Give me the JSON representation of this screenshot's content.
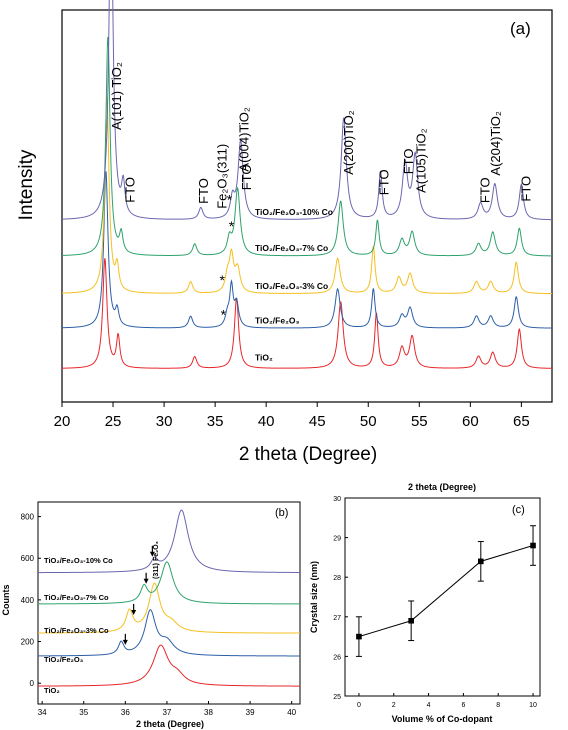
{
  "figure": {
    "panels": [
      {
        "id": "a",
        "panel_label": "(a)",
        "xlabel": "2 theta (Degree)",
        "ylabel": "Intensity",
        "xticks": [
          "20",
          "25",
          "30",
          "35",
          "40",
          "45",
          "50",
          "55",
          "60",
          "65"
        ],
        "series_labels": [
          {
            "text": "TiO₂/Fe₂O₃-10% Co"
          },
          {
            "text": "TiO₂/Fe₂O₃-7% Co"
          },
          {
            "text": "TiO₂/Fe₂O₃-3% Co"
          },
          {
            "text": "TiO₂/Fe₂O₃"
          },
          {
            "text": "TiO₂"
          }
        ],
        "peak_labels": [
          {
            "text": "A(101) TiO₂",
            "x": 25.3
          },
          {
            "text": "FTO",
            "x": 26.6
          },
          {
            "text": "FTO",
            "x": 33.8
          },
          {
            "text": "Fe₂O₃(311)",
            "x": 35.6
          },
          {
            "text": "A(004)TiO₂",
            "x": 37.8
          },
          {
            "text": "FTO",
            "x": 38.0
          },
          {
            "text": "A(200)TiO₂",
            "x": 48.0
          },
          {
            "text": "FTO",
            "x": 51.5
          },
          {
            "text": "FTO",
            "x": 53.9
          },
          {
            "text": "A(105)TiO₂",
            "x": 55.1
          },
          {
            "text": "FTO",
            "x": 61.4
          },
          {
            "text": "A(204)TiO₂",
            "x": 62.4
          },
          {
            "text": "FTO",
            "x": 65.4
          }
        ],
        "star_marker": "*"
      },
      {
        "id": "b",
        "panel_label": "(b)",
        "xlabel": "2 theta (Degree)",
        "ylabel": "Counts",
        "xticks": [
          "34",
          "35",
          "36",
          "37",
          "38",
          "39",
          "40"
        ],
        "yticks": [
          "0",
          "200",
          "400",
          "600",
          "800"
        ],
        "annotation": "(311) Fe₂O₃",
        "series_labels": [
          {
            "text": "TiO₂/Fe₂O₃-10% Co"
          },
          {
            "text": "TiO₂/Fe₂O₃-7% Co"
          },
          {
            "text": "TiO₂/Fe₂O₃-3% Co"
          },
          {
            "text": "TiO₂/Fe₂O₃"
          },
          {
            "text": "TiO₂"
          }
        ]
      },
      {
        "id": "c",
        "panel_label": "(c)",
        "title": "2 theta (Degree)",
        "xlabel": "Volume % of Co-dopant",
        "ylabel": "Crystal size (nm)",
        "xticks": [
          "0",
          "2",
          "4",
          "6",
          "8",
          "10"
        ],
        "yticks": [
          "25",
          "26",
          "27",
          "28",
          "29",
          "30"
        ]
      }
    ]
  },
  "chart_data": [
    {
      "type": "line",
      "panel": "(a)",
      "xlabel": "2 theta (Degree)",
      "ylabel": "Intensity",
      "xlim": [
        20,
        68
      ],
      "ylim": [
        0,
        100
      ],
      "series": [
        {
          "label": "TiO₂",
          "color": "#e8262a",
          "baseline": 8.5,
          "peaks": [
            [
              24.2,
              28,
              0.25
            ],
            [
              25.5,
              8,
              0.2
            ],
            [
              33.0,
              3,
              0.25
            ],
            [
              37.1,
              18,
              0.25
            ],
            [
              47.3,
              17,
              0.3
            ],
            [
              50.8,
              14,
              0.2
            ],
            [
              53.3,
              5,
              0.3
            ],
            [
              54.3,
              8,
              0.3
            ],
            [
              60.8,
              3,
              0.3
            ],
            [
              62.2,
              4,
              0.3
            ],
            [
              64.8,
              10,
              0.25
            ]
          ]
        },
        {
          "label": "TiO₂/Fe₂O₃",
          "color": "#2c5fa8",
          "baseline": 18.8,
          "peaks": [
            [
              24.3,
              40,
              0.25
            ],
            [
              25.4,
              4,
              0.2
            ],
            [
              32.6,
              3,
              0.25
            ],
            [
              36.2,
              3,
              0.25
            ],
            [
              36.6,
              10,
              0.2
            ],
            [
              37.1,
              6,
              0.25
            ],
            [
              47.0,
              10,
              0.3
            ],
            [
              50.5,
              10,
              0.2
            ],
            [
              53.3,
              3,
              0.3
            ],
            [
              54.1,
              5,
              0.3
            ],
            [
              60.6,
              3,
              0.3
            ],
            [
              62.0,
              3,
              0.3
            ],
            [
              64.5,
              8,
              0.25
            ]
          ]
        },
        {
          "label": "TiO₂/Fe₂O₃-3% Co",
          "color": "#f4c020",
          "baseline": 27.6,
          "peaks": [
            [
              24.4,
              50,
              0.25
            ],
            [
              25.4,
              6,
              0.2
            ],
            [
              32.6,
              3,
              0.25
            ],
            [
              36.2,
              4,
              0.25
            ],
            [
              36.6,
              9,
              0.25
            ],
            [
              37.2,
              6,
              0.3
            ],
            [
              47.0,
              9,
              0.3
            ],
            [
              50.5,
              12,
              0.2
            ],
            [
              53.0,
              4,
              0.3
            ],
            [
              54.1,
              5,
              0.3
            ],
            [
              60.6,
              3,
              0.3
            ],
            [
              62.0,
              3,
              0.3
            ],
            [
              64.5,
              8,
              0.25
            ]
          ]
        },
        {
          "label": "TiO₂/Fe₂O₃-7% Co",
          "color": "#2ea26b",
          "baseline": 37.2,
          "peaks": [
            [
              24.5,
              56,
              0.25
            ],
            [
              25.8,
              5,
              0.2
            ],
            [
              33.0,
              3,
              0.25
            ],
            [
              36.4,
              4,
              0.25
            ],
            [
              37.2,
              17,
              0.3
            ],
            [
              47.3,
              14,
              0.3
            ],
            [
              50.9,
              9,
              0.2
            ],
            [
              53.3,
              4,
              0.3
            ],
            [
              54.3,
              6,
              0.3
            ],
            [
              60.8,
              3,
              0.3
            ],
            [
              62.2,
              6,
              0.3
            ],
            [
              64.8,
              7,
              0.25
            ]
          ]
        },
        {
          "label": "TiO₂/Fe₂O₃-10% Co",
          "color": "#6a66b0",
          "baseline": 46.4,
          "peaks": [
            [
              24.8,
              82,
              0.25
            ],
            [
              26.0,
              8,
              0.2
            ],
            [
              33.6,
              3,
              0.25
            ],
            [
              36.7,
              5,
              0.25
            ],
            [
              37.5,
              20,
              0.3
            ],
            [
              47.6,
              26,
              0.3
            ],
            [
              51.2,
              12,
              0.2
            ],
            [
              53.6,
              14,
              0.3
            ],
            [
              54.6,
              16,
              0.3
            ],
            [
              61.0,
              4,
              0.3
            ],
            [
              62.4,
              9,
              0.3
            ],
            [
              65.0,
              9,
              0.25
            ]
          ]
        }
      ]
    },
    {
      "type": "line",
      "panel": "(b)",
      "xlabel": "2 theta (Degree)",
      "ylabel": "Counts",
      "xlim": [
        33.9,
        40.2
      ],
      "ylim": [
        -100,
        870
      ],
      "series": [
        {
          "label": "TiO₂",
          "color": "#e8262a",
          "baseline": -15,
          "peaks": [
            [
              36.85,
              190,
              0.22
            ],
            [
              37.25,
              40,
              0.2
            ]
          ]
        },
        {
          "label": "TiO₂/Fe₂O₃",
          "color": "#2c5fa8",
          "baseline": 130,
          "peaks": [
            [
              35.9,
              60,
              0.08
            ],
            [
              36.6,
              210,
              0.16
            ],
            [
              37.0,
              60,
              0.2
            ]
          ]
        },
        {
          "label": "TiO₂/Fe₂O₃-3% Co",
          "color": "#f4c020",
          "baseline": 240,
          "peaks": [
            [
              36.1,
              100,
              0.1
            ],
            [
              36.7,
              230,
              0.16
            ],
            [
              37.1,
              40,
              0.2
            ]
          ]
        },
        {
          "label": "TiO₂/Fe₂O₃-7% Co",
          "color": "#2ea26b",
          "baseline": 380,
          "peaks": [
            [
              36.45,
              75,
              0.1
            ],
            [
              37.0,
              200,
              0.18
            ]
          ]
        },
        {
          "label": "TiO₂/Fe₂O₃-10% Co",
          "color": "#6a66b0",
          "baseline": 530,
          "peaks": [
            [
              36.7,
              50,
              0.1
            ],
            [
              37.35,
              300,
              0.2
            ]
          ]
        }
      ],
      "arrows_at_x": [
        36.0,
        36.2,
        36.5,
        36.65
      ]
    },
    {
      "type": "scatter",
      "panel": "(c)",
      "xlabel": "Volume % of Co-dopant",
      "ylabel": "Crystal size (nm)",
      "xlim": [
        -0.8,
        10.4
      ],
      "ylim": [
        25,
        30
      ],
      "x": [
        0,
        3,
        7,
        10
      ],
      "y": [
        26.5,
        26.9,
        28.4,
        28.8
      ],
      "yerr": [
        0.5,
        0.5,
        0.5,
        0.5
      ],
      "connected": true
    }
  ]
}
